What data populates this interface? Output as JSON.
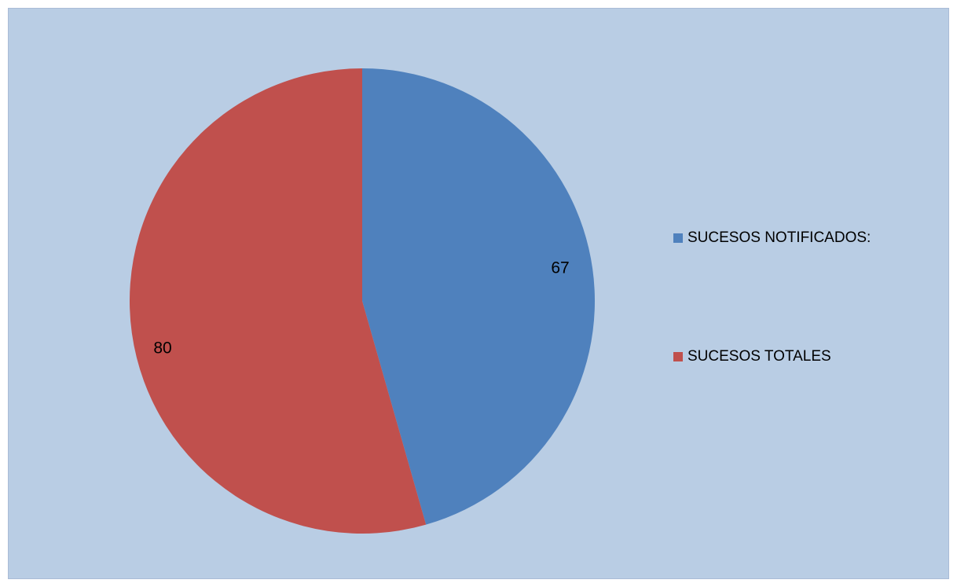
{
  "chart_data": {
    "type": "pie",
    "title": "",
    "slices": [
      {
        "label": "SUCESOS NOTIFICADOS:",
        "value": 67,
        "color": "#4f81bd"
      },
      {
        "label": "SUCESOS TOTALES",
        "value": 80,
        "color": "#c0504d"
      }
    ],
    "start_angle_deg": 0,
    "direction": "clockwise",
    "legend_position": "right",
    "data_labels": [
      "67",
      "80"
    ]
  }
}
